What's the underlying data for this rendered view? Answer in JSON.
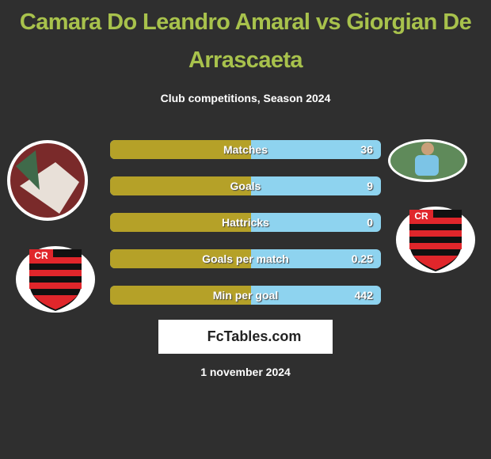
{
  "header": {
    "title": "Camara Do Leandro Amaral vs Giorgian De Arrascaeta",
    "subtitle": "Club competitions, Season 2024"
  },
  "rows": [
    {
      "label": "Matches",
      "value": 36
    },
    {
      "label": "Goals",
      "value": 9
    },
    {
      "label": "Hattricks",
      "value": 0
    },
    {
      "label": "Goals per match",
      "value": 0.25
    },
    {
      "label": "Min per goal",
      "value": 442
    }
  ],
  "brand": "FcTables.com",
  "date": "1 november 2024"
}
